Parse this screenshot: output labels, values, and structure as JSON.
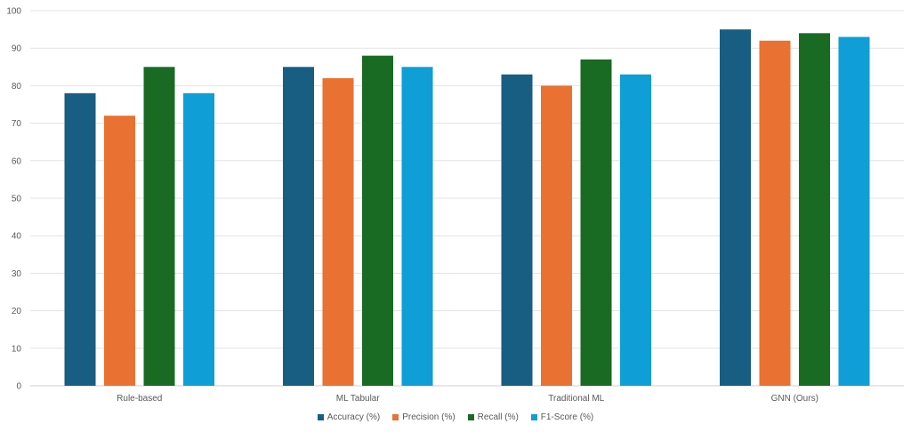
{
  "chart_data": {
    "type": "bar",
    "title": "",
    "xlabel": "",
    "ylabel": "",
    "ylim": [
      0,
      100
    ],
    "yticks": [
      0,
      10,
      20,
      30,
      40,
      50,
      60,
      70,
      80,
      90,
      100
    ],
    "grid": true,
    "legend_position": "bottom",
    "categories": [
      "Rule-based",
      "ML Tabular",
      "Traditional ML",
      "GNN (Ours)"
    ],
    "series": [
      {
        "name": "Accuracy (%)",
        "color": "#175E82",
        "values": [
          78,
          85,
          83,
          95
        ]
      },
      {
        "name": "Precision (%)",
        "color": "#E97132",
        "values": [
          72,
          82,
          80,
          92
        ]
      },
      {
        "name": "Recall (%)",
        "color": "#196B24",
        "values": [
          85,
          88,
          87,
          94
        ]
      },
      {
        "name": "F1-Score (%)",
        "color": "#0F9ED5",
        "values": [
          78,
          85,
          83,
          93
        ]
      }
    ]
  }
}
